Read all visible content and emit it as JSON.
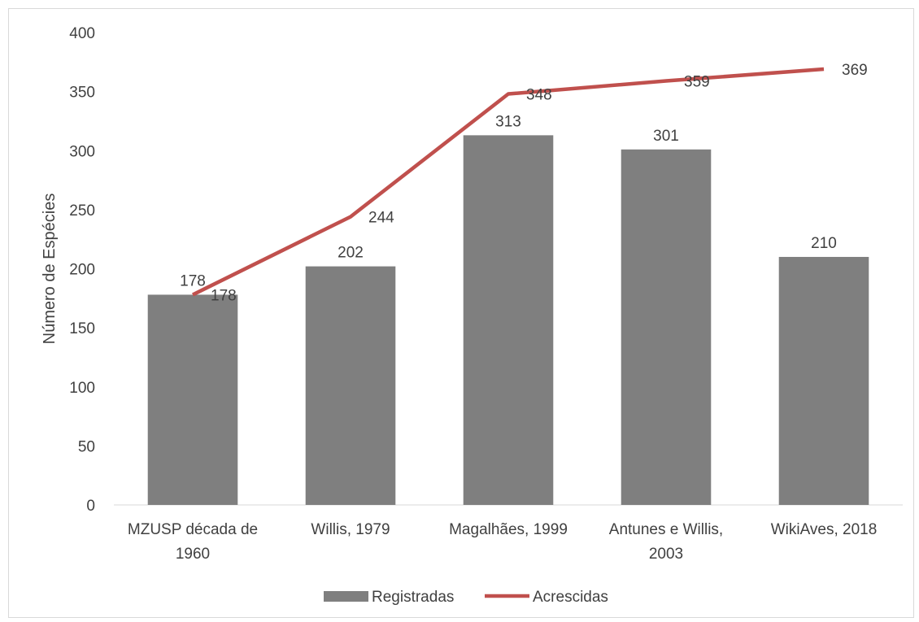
{
  "chart_data": {
    "type": "bar+line",
    "categories": [
      [
        "MZUSP década de",
        "1960"
      ],
      [
        "Willis, 1979"
      ],
      [
        "Magalhães, 1999"
      ],
      [
        "Antunes e Willis,",
        "2003"
      ],
      [
        "WikiAves, 2018"
      ]
    ],
    "series": [
      {
        "name": "Registradas",
        "type": "bar",
        "color": "#7f7f7f",
        "values": [
          178,
          202,
          313,
          301,
          210
        ]
      },
      {
        "name": "Acrescidas",
        "type": "line",
        "color": "#c0504d",
        "values": [
          178,
          244,
          348,
          359,
          369
        ]
      }
    ],
    "ylabel": "Número de Espécies",
    "xlabel": "",
    "ylim": [
      0,
      400
    ],
    "yticks": [
      0,
      50,
      100,
      150,
      200,
      250,
      300,
      350,
      400
    ],
    "grid": false,
    "legend": "bottom-center"
  }
}
